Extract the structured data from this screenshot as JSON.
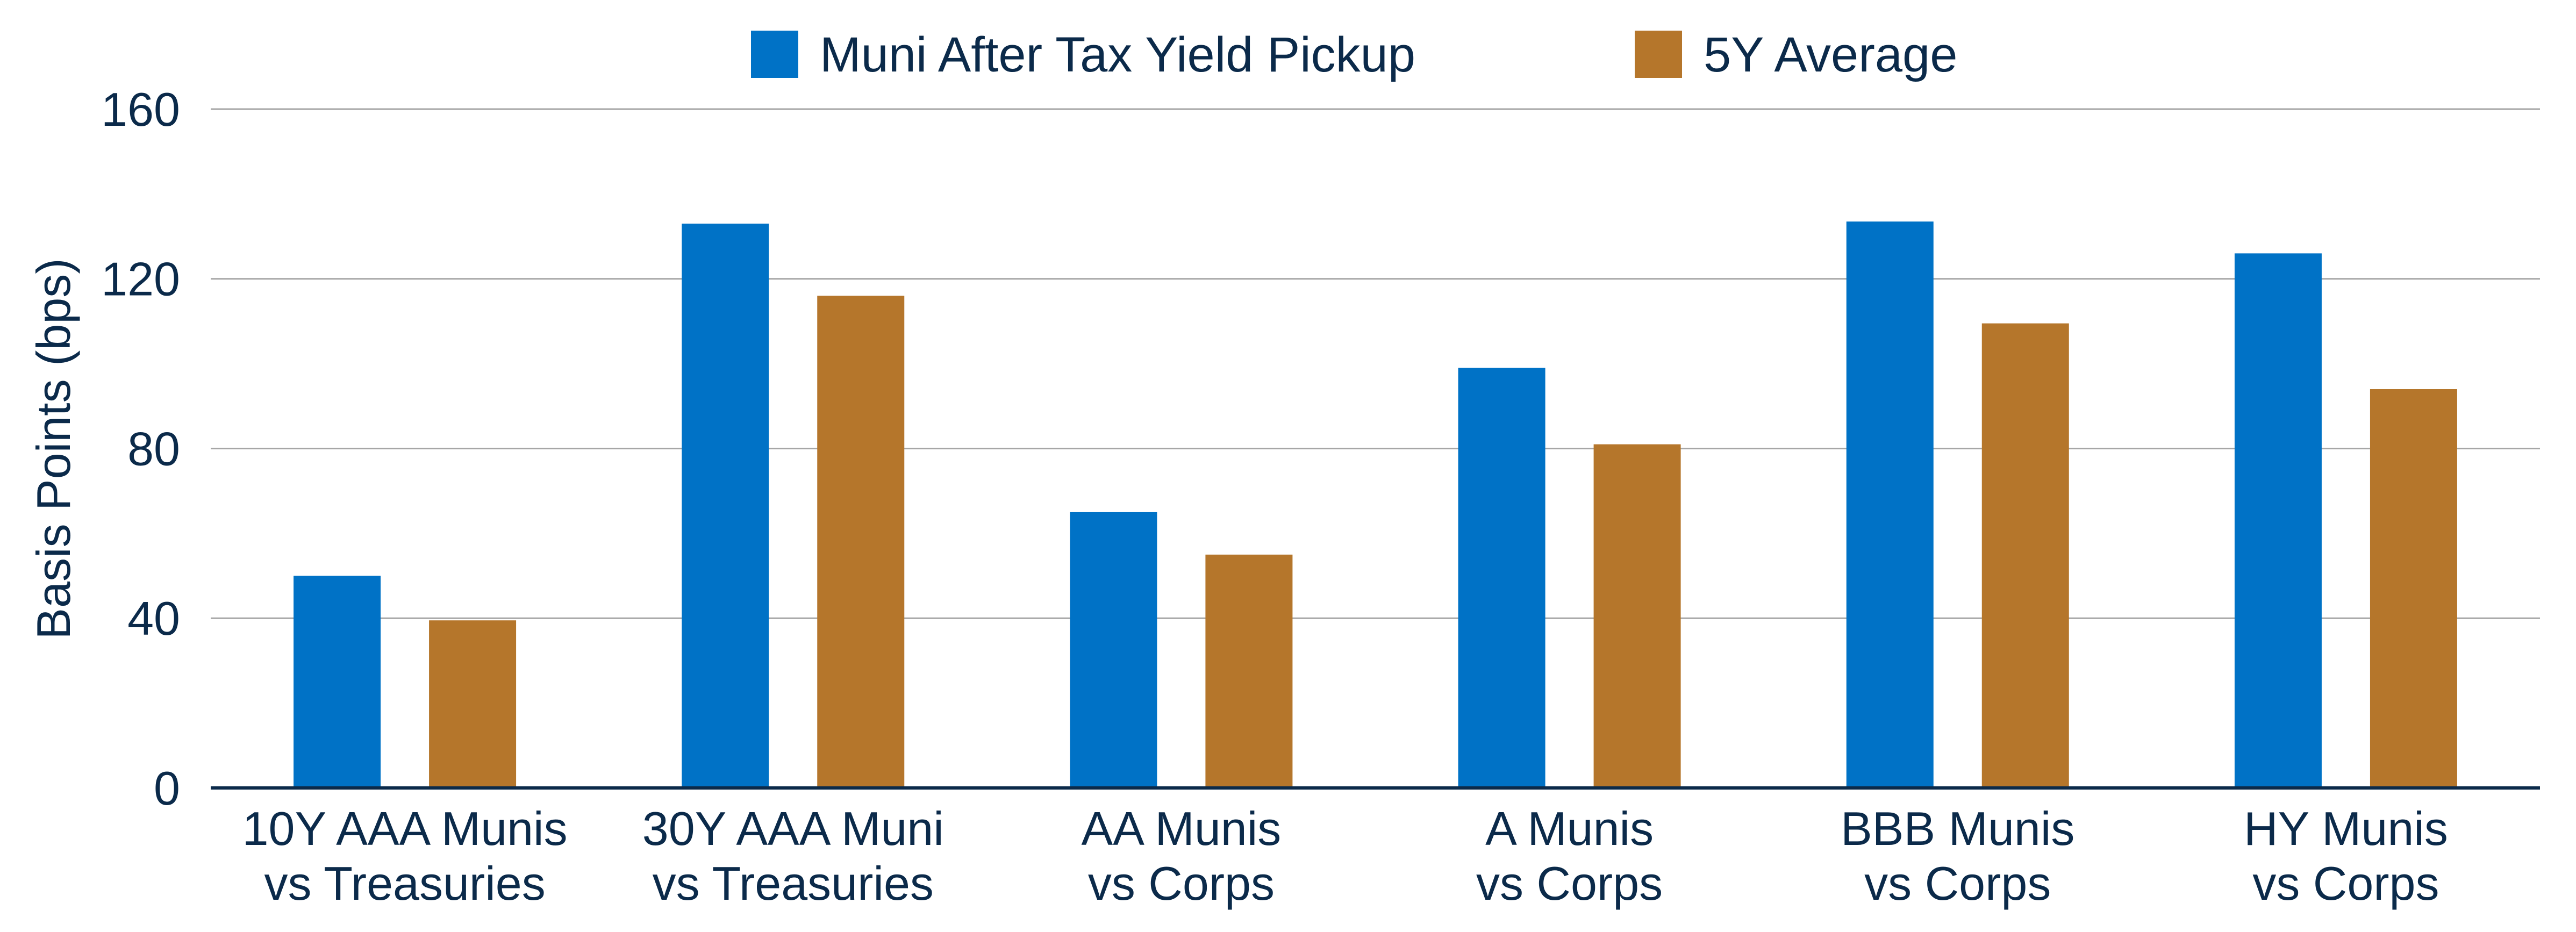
{
  "chart_data": {
    "type": "bar",
    "title": "",
    "xlabel": "",
    "ylabel": "Basis Points (bps)",
    "ylim": [
      0,
      160
    ],
    "yticks": [
      0,
      40,
      80,
      120,
      160
    ],
    "grid": true,
    "legend_position": "top-center",
    "categories": [
      [
        "10Y AAA Munis",
        "vs Treasuries"
      ],
      [
        "30Y AAA Muni",
        "vs Treasuries"
      ],
      [
        "AA Munis",
        "vs Corps"
      ],
      [
        "A Munis",
        "vs Corps"
      ],
      [
        "BBB Munis",
        "vs Corps"
      ],
      [
        "HY Munis",
        "vs Corps"
      ]
    ],
    "series": [
      {
        "name": "Muni After Tax Yield Pickup",
        "color": "#0072C6",
        "values": [
          50,
          133,
          65,
          99,
          133.5,
          126
        ]
      },
      {
        "name": "5Y Average",
        "color": "#B5762B",
        "values": [
          39.5,
          116,
          55,
          81,
          109.5,
          94
        ]
      }
    ]
  },
  "colors": {
    "text": "#0B2A4A",
    "gridline": "#A6A6A6",
    "axis": "#0B2A4A"
  }
}
